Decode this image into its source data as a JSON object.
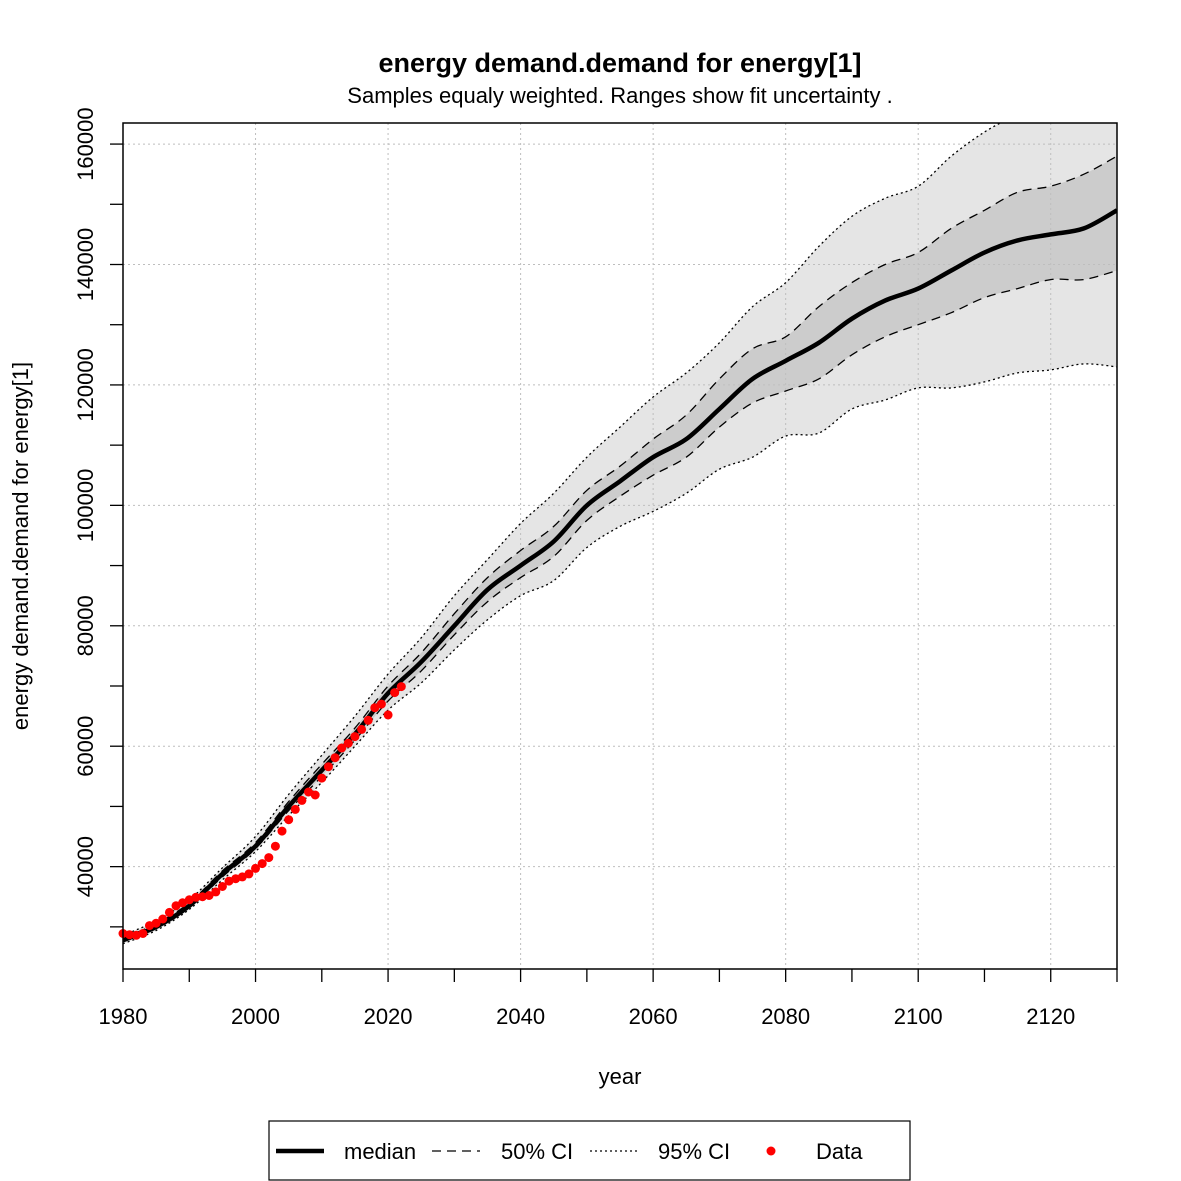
{
  "chart_data": {
    "type": "line",
    "title": "energy demand.demand for energy[1]",
    "subtitle": "Samples equaly weighted. Ranges show  fit uncertainty .",
    "xlabel": "year",
    "ylabel": "energy demand.demand for energy[1]",
    "xlim": [
      1980,
      2130
    ],
    "ylim": [
      23000,
      163500
    ],
    "x_ticks": [
      1980,
      2000,
      2020,
      2040,
      2060,
      2080,
      2100,
      2120
    ],
    "y_ticks": [
      40000,
      60000,
      80000,
      100000,
      120000,
      140000,
      160000
    ],
    "x_tick_labels": [
      "1980",
      "2000",
      "2020",
      "2040",
      "2060",
      "2080",
      "2100",
      "2120"
    ],
    "y_tick_labels": [
      "40000",
      "60000",
      "80000",
      "100000",
      "120000",
      "140000",
      "160000"
    ],
    "grid": true,
    "legend": {
      "position": "bottom",
      "entries": [
        {
          "label": "median",
          "style": "solid"
        },
        {
          "label": "50% CI",
          "style": "dashed"
        },
        {
          "label": "95% CI",
          "style": "dotted"
        },
        {
          "label": "Data",
          "style": "point"
        }
      ]
    },
    "colors": {
      "median": "#000000",
      "band95": "#e5e5e5",
      "band50": "#cccccc",
      "data": "#ff0000",
      "grid": "#bebebe"
    },
    "x": [
      1980,
      1985,
      1990,
      1995,
      2000,
      2005,
      2010,
      2015,
      2020,
      2025,
      2030,
      2035,
      2040,
      2045,
      2050,
      2055,
      2060,
      2065,
      2070,
      2075,
      2080,
      2085,
      2090,
      2095,
      2100,
      2105,
      2110,
      2115,
      2120,
      2125,
      2130
    ],
    "series": [
      {
        "name": "median",
        "values": [
          27800,
          30000,
          33500,
          38800,
          43400,
          50000,
          56000,
          62000,
          68800,
          74000,
          80000,
          86000,
          90000,
          94000,
          100000,
          104000,
          108000,
          111000,
          116000,
          121000,
          124000,
          127000,
          131000,
          134000,
          136000,
          139000,
          142000,
          144000,
          145000,
          146000,
          149000
        ]
      },
      {
        "name": "50% CI upper",
        "values": [
          28200,
          30500,
          34000,
          39300,
          44000,
          50800,
          57000,
          63000,
          70000,
          75500,
          82000,
          88000,
          92500,
          96500,
          102500,
          106500,
          111000,
          115000,
          121000,
          126000,
          128000,
          133000,
          137000,
          140000,
          142000,
          146000,
          149000,
          152000,
          153000,
          155000,
          158000
        ]
      },
      {
        "name": "50% CI lower",
        "values": [
          27500,
          29700,
          33200,
          38300,
          43000,
          49300,
          55000,
          61000,
          67500,
          72500,
          78500,
          84000,
          88000,
          91500,
          97500,
          101500,
          105000,
          108000,
          113000,
          117000,
          119000,
          121000,
          125000,
          128000,
          130000,
          132000,
          134500,
          136000,
          137500,
          137500,
          139000
        ]
      },
      {
        "name": "95% CI upper",
        "values": [
          28600,
          31000,
          34500,
          39800,
          45000,
          52000,
          58500,
          65000,
          72000,
          78000,
          85000,
          91000,
          97000,
          102000,
          108000,
          113000,
          118000,
          122000,
          127000,
          133000,
          137000,
          143000,
          148000,
          151000,
          153000,
          158000,
          162000,
          165000,
          168000,
          170000,
          172000
        ]
      },
      {
        "name": "95% CI lower",
        "values": [
          27200,
          29400,
          32900,
          37800,
          42500,
          48500,
          54000,
          60000,
          66000,
          70500,
          76000,
          81000,
          85000,
          87500,
          93000,
          96500,
          99000,
          102000,
          106000,
          108000,
          111500,
          112000,
          116000,
          117500,
          119500,
          119500,
          120500,
          122000,
          122500,
          123500,
          123000
        ]
      }
    ],
    "data_points": {
      "name": "Data",
      "x": [
        1980,
        1981,
        1982,
        1983,
        1984,
        1985,
        1986,
        1987,
        1988,
        1989,
        1990,
        1991,
        1992,
        1993,
        1994,
        1995,
        1996,
        1997,
        1998,
        1999,
        2000,
        2001,
        2002,
        2003,
        2004,
        2005,
        2006,
        2007,
        2008,
        2009,
        2010,
        2011,
        2012,
        2013,
        2014,
        2015,
        2016,
        2017,
        2018,
        2019,
        2020,
        2021,
        2022
      ],
      "y": [
        28900,
        28700,
        28600,
        28900,
        30200,
        30600,
        31300,
        32400,
        33500,
        34000,
        34500,
        34900,
        35000,
        35200,
        35800,
        36700,
        37600,
        38000,
        38300,
        38800,
        39700,
        40500,
        41500,
        43400,
        45900,
        47800,
        49500,
        51000,
        52400,
        51900,
        54700,
        56600,
        58100,
        59700,
        60500,
        61600,
        62800,
        64300,
        66400,
        67000,
        65200,
        68900,
        69900
      ]
    }
  }
}
